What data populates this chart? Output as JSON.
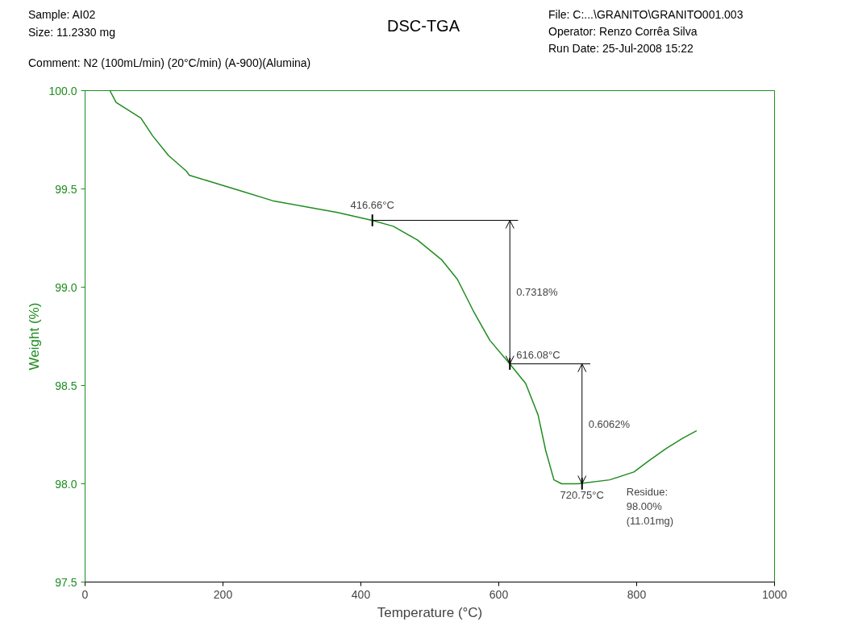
{
  "chart_data": {
    "type": "line",
    "title": "DSC-TGA",
    "xlabel": "Temperature (°C)",
    "ylabel": "Weight (%)",
    "annotations": [
      "Sample: AI02",
      "Size:  11.2330 mg",
      "Comment: N2 (100mL/min) (20°C/min) (A-900)(Alumina)",
      "File: C:...\\GRANITO\\GRANITO001.003",
      "Operator: Renzo Corrêa Silva",
      "Run Date: 25-Jul-2008 15:22",
      {
        "text": "416.66°C",
        "x": 416.66,
        "y": 99.34
      },
      {
        "text": "616.08°C",
        "x": 616.08,
        "y": 98.61
      },
      {
        "text": "720.75°C",
        "x": 720.75,
        "y": 98.0
      },
      "0.7318%",
      "0.6062%",
      "Residue:\n98.00%\n(11.01mg)"
    ],
    "x": [
      36,
      45,
      63,
      81,
      98,
      121,
      147,
      151,
      179,
      226,
      272,
      319,
      366,
      416,
      447,
      482,
      517,
      540,
      563,
      587,
      616,
      639,
      657,
      668,
      680,
      691,
      715,
      761,
      796,
      819,
      843,
      866,
      887
    ],
    "series": [
      {
        "color": "#1f8c1f",
        "values": [
          100.0,
          99.94,
          99.9,
          99.86,
          99.77,
          99.67,
          99.59,
          99.57,
          99.54,
          99.49,
          99.44,
          99.41,
          99.38,
          99.34,
          99.31,
          99.24,
          99.14,
          99.04,
          98.88,
          98.73,
          98.61,
          98.51,
          98.35,
          98.17,
          98.02,
          98.0,
          98.0,
          98.02,
          98.06,
          98.12,
          98.18,
          98.23,
          98.27
        ]
      }
    ],
    "xlim": [
      0,
      1000
    ],
    "ylim": [
      97.5,
      100
    ],
    "xticks": [
      0,
      200,
      400,
      600,
      800,
      1000
    ],
    "yticks": [
      97.5,
      {
        "value": 98,
        "label": "98.0"
      },
      98.5,
      {
        "value": 99,
        "label": "99.0"
      },
      99.5,
      {
        "value": 100,
        "label": "100.0"
      }
    ]
  }
}
